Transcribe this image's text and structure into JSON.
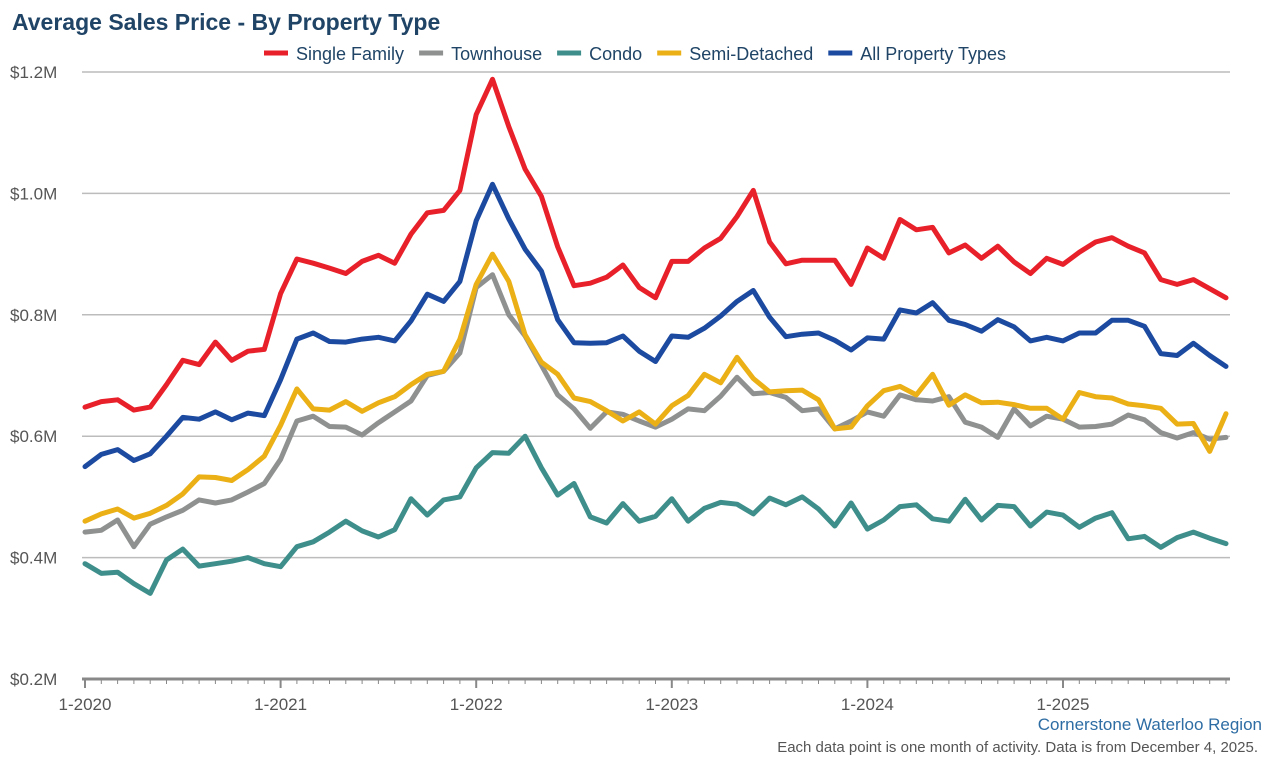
{
  "chart_data": {
    "type": "line",
    "title": "Average Sales Price - By Property Type",
    "xlabel": "",
    "ylabel": "",
    "start": "1-2020",
    "x_tick_labels": [
      "1-2020",
      "1-2021",
      "1-2022",
      "1-2023",
      "1-2024",
      "1-2025"
    ],
    "y_tick_labels": [
      "$0.2M",
      "$0.4M",
      "$0.6M",
      "$0.8M",
      "$1.0M",
      "$1.2M"
    ],
    "y_tick_values": [
      200000,
      400000,
      600000,
      800000,
      1000000,
      1200000
    ],
    "ylim": [
      200000,
      1200000
    ],
    "grid": true,
    "legend_position": "top",
    "source": "Cornerstone Waterloo Region",
    "note": "Each data point is one month of activity. Data is from December 4, 2025.",
    "series": [
      {
        "name": "Single Family",
        "color": "#e8202a",
        "values": [
          648000,
          657000,
          660000,
          643000,
          648000,
          685000,
          725000,
          718000,
          755000,
          725000,
          740000,
          743000,
          835000,
          892000,
          885000,
          877000,
          868000,
          888000,
          898000,
          885000,
          933000,
          968000,
          972000,
          1005000,
          1130000,
          1188000,
          1110000,
          1040000,
          995000,
          912000,
          848000,
          852000,
          862000,
          882000,
          845000,
          828000,
          888000,
          888000,
          910000,
          926000,
          962000,
          1005000,
          920000,
          884000,
          890000,
          890000,
          890000,
          850000,
          910000,
          893000,
          957000,
          940000,
          944000,
          902000,
          915000,
          893000,
          913000,
          887000,
          868000,
          893000,
          883000,
          903000,
          920000,
          927000,
          913000,
          902000,
          858000,
          850000,
          858000,
          843000,
          828000
        ]
      },
      {
        "name": "Townhouse",
        "color": "#8f9190",
        "values": [
          442000,
          445000,
          462000,
          418000,
          455000,
          467000,
          478000,
          495000,
          490000,
          495000,
          508000,
          522000,
          562000,
          625000,
          633000,
          616000,
          615000,
          602000,
          622000,
          640000,
          658000,
          700000,
          707000,
          737000,
          845000,
          866000,
          800000,
          765000,
          717000,
          668000,
          645000,
          613000,
          640000,
          636000,
          625000,
          615000,
          628000,
          645000,
          642000,
          666000,
          697000,
          670000,
          672000,
          664000,
          642000,
          645000,
          612000,
          625000,
          640000,
          633000,
          668000,
          660000,
          658000,
          665000,
          623000,
          615000,
          598000,
          645000,
          617000,
          633000,
          628000,
          615000,
          616000,
          620000,
          635000,
          627000,
          606000,
          597000,
          606000,
          595000,
          598000
        ]
      },
      {
        "name": "Condo",
        "color": "#3e8f8b",
        "values": [
          390000,
          374000,
          376000,
          357000,
          341000,
          396000,
          414000,
          386000,
          390000,
          394000,
          400000,
          390000,
          385000,
          418000,
          426000,
          442000,
          460000,
          444000,
          434000,
          446000,
          497000,
          470000,
          495000,
          500000,
          548000,
          573000,
          572000,
          600000,
          548000,
          503000,
          522000,
          467000,
          457000,
          489000,
          460000,
          468000,
          497000,
          460000,
          481000,
          491000,
          488000,
          472000,
          498000,
          487000,
          500000,
          480000,
          452000,
          490000,
          447000,
          462000,
          484000,
          487000,
          464000,
          460000,
          496000,
          462000,
          486000,
          484000,
          452000,
          475000,
          470000,
          450000,
          465000,
          474000,
          431000,
          435000,
          417000,
          433000,
          442000,
          432000,
          423000
        ]
      },
      {
        "name": "Semi-Detached",
        "color": "#ebb015",
        "values": [
          460000,
          472000,
          480000,
          465000,
          473000,
          486000,
          505000,
          533000,
          532000,
          527000,
          545000,
          567000,
          618000,
          678000,
          645000,
          643000,
          657000,
          641000,
          655000,
          665000,
          685000,
          702000,
          707000,
          760000,
          850000,
          900000,
          855000,
          767000,
          722000,
          702000,
          663000,
          657000,
          642000,
          625000,
          640000,
          620000,
          650000,
          667000,
          702000,
          688000,
          730000,
          695000,
          673000,
          675000,
          676000,
          660000,
          612000,
          615000,
          650000,
          675000,
          682000,
          668000,
          702000,
          651000,
          668000,
          655000,
          656000,
          652000,
          646000,
          646000,
          628000,
          672000,
          665000,
          663000,
          653000,
          650000,
          646000,
          620000,
          621000,
          575000,
          637000
        ]
      },
      {
        "name": "All Property Types",
        "color": "#1c4aa0",
        "values": [
          550000,
          570000,
          578000,
          560000,
          571000,
          600000,
          631000,
          628000,
          640000,
          627000,
          638000,
          634000,
          693000,
          760000,
          770000,
          756000,
          755000,
          760000,
          763000,
          757000,
          790000,
          834000,
          822000,
          855000,
          955000,
          1015000,
          958000,
          908000,
          872000,
          792000,
          754000,
          753000,
          754000,
          765000,
          740000,
          723000,
          765000,
          763000,
          778000,
          798000,
          822000,
          840000,
          796000,
          764000,
          768000,
          770000,
          758000,
          742000,
          762000,
          760000,
          808000,
          803000,
          820000,
          791000,
          784000,
          773000,
          792000,
          780000,
          757000,
          763000,
          757000,
          770000,
          770000,
          791000,
          791000,
          781000,
          736000,
          733000,
          753000,
          733000,
          715000
        ]
      }
    ]
  }
}
